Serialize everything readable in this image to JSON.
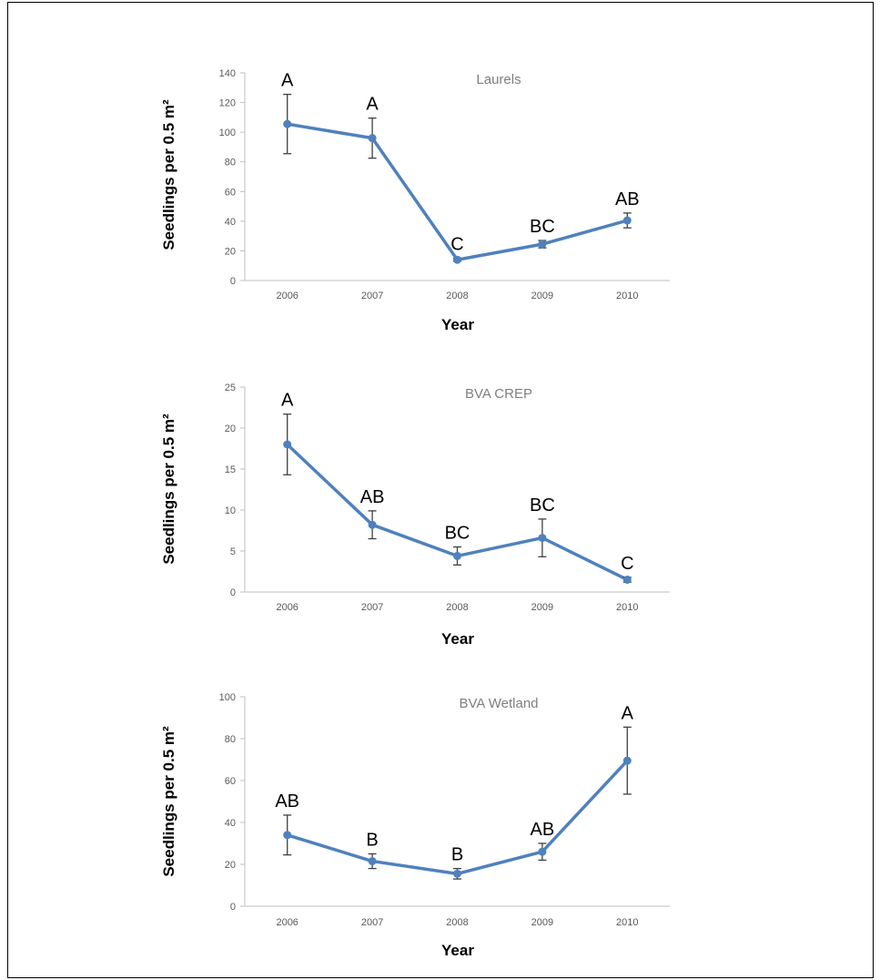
{
  "chart_data": [
    {
      "type": "line",
      "title": "Laurels",
      "xlabel": "Year",
      "ylabel": "Seedlings per 0.5 m²",
      "ylim": [
        0,
        140
      ],
      "yticks": [
        0,
        20,
        40,
        60,
        80,
        100,
        120,
        140
      ],
      "categories": [
        "2006",
        "2007",
        "2008",
        "2009",
        "2010"
      ],
      "values": [
        105.5,
        96,
        14,
        24.5,
        40.5
      ],
      "errors": [
        20,
        13.5,
        1,
        2.5,
        5
      ],
      "letters": [
        "A",
        "A",
        "C",
        "BC",
        "AB"
      ],
      "grid": false,
      "series_color": "#4f81bd"
    },
    {
      "type": "line",
      "title": "BVA CREP",
      "xlabel": "Year",
      "ylabel": "Seedlings per 0.5 m²",
      "ylim": [
        0,
        25
      ],
      "yticks": [
        0,
        5,
        10,
        15,
        20,
        25
      ],
      "categories": [
        "2006",
        "2007",
        "2008",
        "2009",
        "2010"
      ],
      "values": [
        18,
        8.2,
        4.4,
        6.6,
        1.5
      ],
      "errors": [
        3.7,
        1.7,
        1.1,
        2.3,
        0.3
      ],
      "letters": [
        "A",
        "AB",
        "BC",
        "BC",
        "C"
      ],
      "grid": false,
      "series_color": "#4f81bd"
    },
    {
      "type": "line",
      "title": "BVA Wetland",
      "xlabel": "Year",
      "ylabel": "Seedlings per 0.5 m²",
      "ylim": [
        0,
        100
      ],
      "yticks": [
        0,
        20,
        40,
        60,
        80,
        100
      ],
      "categories": [
        "2006",
        "2007",
        "2008",
        "2009",
        "2010"
      ],
      "values": [
        34,
        21.5,
        15.5,
        26,
        69.5
      ],
      "errors": [
        9.5,
        3.5,
        2.5,
        4,
        16
      ],
      "letters": [
        "AB",
        "B",
        "B",
        "AB",
        "A"
      ],
      "grid": false,
      "series_color": "#4f81bd"
    }
  ]
}
